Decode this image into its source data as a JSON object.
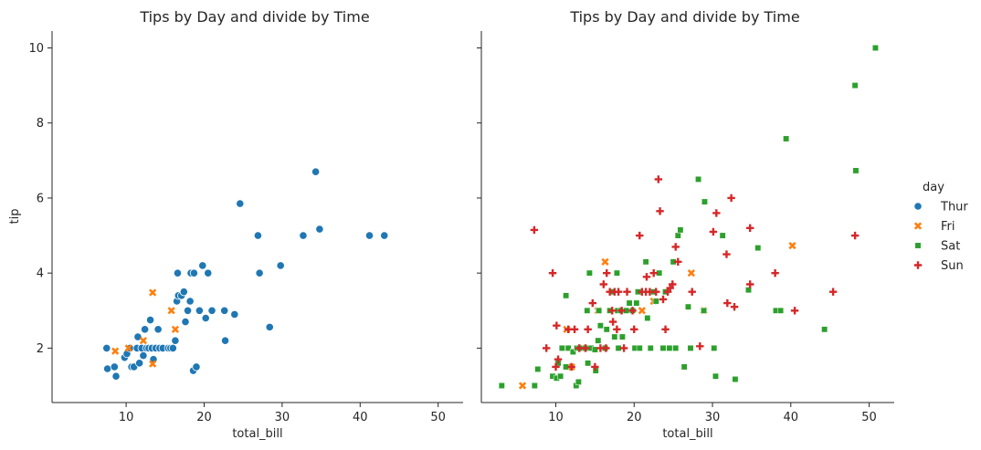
{
  "chart_data": {
    "type": "scatter",
    "xlim": [
      0.5,
      53.2
    ],
    "ylim": [
      0.55,
      10.45
    ],
    "xticks": [
      10,
      20,
      30,
      40,
      50
    ],
    "yticks": [
      2,
      4,
      6,
      8,
      10
    ],
    "grid": false,
    "legend": {
      "title": "day",
      "placement": "right-outside"
    },
    "panels": [
      {
        "title": "Tips by Day and divide by Time",
        "xlabel": "total_bill",
        "ylabel": "tip"
      },
      {
        "title": "Tips by Day and divide by Time",
        "xlabel": "total_bill",
        "ylabel": ""
      }
    ],
    "series": [
      {
        "name": "Thur",
        "marker": "circle",
        "color": "#1f77b4",
        "panel": 0,
        "points": [
          [
            7.5,
            2.0
          ],
          [
            7.6,
            1.45
          ],
          [
            8.5,
            1.5
          ],
          [
            8.7,
            1.25
          ],
          [
            9.8,
            1.75
          ],
          [
            10.1,
            1.85
          ],
          [
            10.5,
            2.0
          ],
          [
            10.7,
            1.5
          ],
          [
            11.0,
            1.5
          ],
          [
            11.4,
            2.0
          ],
          [
            11.5,
            2.3
          ],
          [
            11.7,
            1.6
          ],
          [
            12.0,
            2.0
          ],
          [
            12.2,
            1.8
          ],
          [
            12.4,
            2.5
          ],
          [
            12.6,
            2.0
          ],
          [
            12.9,
            2.0
          ],
          [
            13.1,
            2.75
          ],
          [
            13.3,
            2.0
          ],
          [
            13.5,
            1.7
          ],
          [
            13.8,
            2.0
          ],
          [
            14.1,
            2.5
          ],
          [
            14.3,
            2.0
          ],
          [
            14.7,
            2.0
          ],
          [
            15.4,
            2.0
          ],
          [
            15.7,
            2.0
          ],
          [
            16.0,
            2.0
          ],
          [
            16.3,
            2.2
          ],
          [
            16.5,
            3.25
          ],
          [
            16.6,
            4.0
          ],
          [
            16.7,
            3.4
          ],
          [
            17.1,
            3.4
          ],
          [
            17.4,
            3.5
          ],
          [
            17.6,
            2.7
          ],
          [
            17.9,
            3.0
          ],
          [
            18.2,
            3.25
          ],
          [
            18.3,
            4.0
          ],
          [
            18.6,
            1.4
          ],
          [
            18.7,
            4.0
          ],
          [
            19.0,
            1.5
          ],
          [
            19.4,
            3.0
          ],
          [
            19.8,
            4.2
          ],
          [
            20.2,
            2.8
          ],
          [
            20.5,
            4.0
          ],
          [
            21.0,
            3.0
          ],
          [
            22.6,
            3.0
          ],
          [
            22.7,
            2.2
          ],
          [
            23.9,
            2.9
          ],
          [
            24.6,
            5.85
          ],
          [
            26.9,
            5.0
          ],
          [
            27.1,
            4.0
          ],
          [
            28.4,
            2.56
          ],
          [
            29.8,
            4.2
          ],
          [
            32.7,
            5.0
          ],
          [
            34.3,
            6.7
          ],
          [
            34.8,
            5.17
          ],
          [
            41.2,
            5.0
          ],
          [
            43.1,
            5.0
          ]
        ]
      },
      {
        "name": "Fri",
        "marker": "x",
        "color": "#ff7f0e",
        "panel": 0,
        "points": [
          [
            8.6,
            1.92
          ],
          [
            10.3,
            2.0
          ],
          [
            12.2,
            2.2
          ],
          [
            13.4,
            3.48
          ],
          [
            13.4,
            1.58
          ],
          [
            15.8,
            3.0
          ],
          [
            16.3,
            2.5
          ]
        ]
      },
      {
        "name": "Fri",
        "marker": "x",
        "color": "#ff7f0e",
        "panel": 1,
        "points": [
          [
            5.75,
            1.0
          ],
          [
            11.4,
            2.5
          ],
          [
            12.0,
            1.5
          ],
          [
            13.4,
            2.0
          ],
          [
            15.4,
            3.0
          ],
          [
            16.3,
            4.3
          ],
          [
            21.0,
            3.0
          ],
          [
            22.5,
            3.25
          ],
          [
            27.3,
            4.0
          ],
          [
            28.9,
            3.0
          ],
          [
            40.2,
            4.73
          ]
        ]
      },
      {
        "name": "Sat",
        "marker": "square",
        "color": "#2ca02c",
        "panel": 1,
        "points": [
          [
            3.1,
            1.0
          ],
          [
            7.3,
            1.0
          ],
          [
            7.7,
            1.44
          ],
          [
            9.6,
            1.25
          ],
          [
            10.1,
            1.2
          ],
          [
            10.3,
            1.6
          ],
          [
            10.6,
            1.25
          ],
          [
            10.8,
            2.0
          ],
          [
            11.3,
            1.5
          ],
          [
            11.3,
            3.4
          ],
          [
            11.6,
            2.0
          ],
          [
            12.2,
            1.9
          ],
          [
            12.6,
            1.0
          ],
          [
            12.7,
            2.0
          ],
          [
            12.9,
            1.1
          ],
          [
            13.0,
            2.0
          ],
          [
            13.4,
            2.0
          ],
          [
            13.8,
            2.0
          ],
          [
            14.0,
            3.0
          ],
          [
            14.1,
            1.6
          ],
          [
            14.3,
            4.0
          ],
          [
            14.5,
            2.0
          ],
          [
            15.0,
            1.96
          ],
          [
            15.1,
            1.4
          ],
          [
            15.4,
            2.2
          ],
          [
            15.5,
            3.0
          ],
          [
            15.7,
            2.6
          ],
          [
            16.3,
            2.0
          ],
          [
            16.5,
            2.5
          ],
          [
            16.9,
            3.0
          ],
          [
            17.3,
            3.5
          ],
          [
            17.5,
            2.3
          ],
          [
            17.8,
            4.0
          ],
          [
            17.9,
            3.0
          ],
          [
            18.0,
            2.0
          ],
          [
            18.3,
            3.0
          ],
          [
            18.5,
            2.3
          ],
          [
            19.0,
            3.0
          ],
          [
            19.4,
            3.2
          ],
          [
            19.8,
            3.0
          ],
          [
            20.1,
            2.0
          ],
          [
            20.3,
            3.2
          ],
          [
            20.5,
            3.5
          ],
          [
            20.7,
            2.0
          ],
          [
            21.5,
            4.3
          ],
          [
            21.7,
            2.8
          ],
          [
            22.1,
            2.0
          ],
          [
            22.5,
            3.5
          ],
          [
            22.8,
            3.25
          ],
          [
            23.2,
            4.0
          ],
          [
            23.7,
            2.0
          ],
          [
            24.0,
            3.5
          ],
          [
            24.5,
            2.0
          ],
          [
            25.0,
            4.3
          ],
          [
            25.3,
            2.0
          ],
          [
            25.6,
            5.0
          ],
          [
            25.9,
            5.15
          ],
          [
            26.4,
            1.5
          ],
          [
            26.9,
            3.1
          ],
          [
            27.2,
            2.0
          ],
          [
            28.2,
            6.5
          ],
          [
            28.9,
            3.0
          ],
          [
            29.0,
            5.9
          ],
          [
            30.2,
            2.0
          ],
          [
            30.4,
            1.25
          ],
          [
            31.3,
            5.0
          ],
          [
            32.9,
            1.17
          ],
          [
            34.6,
            3.55
          ],
          [
            35.8,
            4.67
          ],
          [
            38.1,
            3.0
          ],
          [
            38.7,
            3.0
          ],
          [
            39.4,
            7.58
          ],
          [
            44.3,
            2.5
          ],
          [
            48.2,
            9.0
          ],
          [
            48.3,
            6.73
          ],
          [
            50.8,
            10.0
          ]
        ]
      },
      {
        "name": "Sun",
        "marker": "plus",
        "color": "#d62728",
        "panel": 1,
        "points": [
          [
            7.25,
            5.15
          ],
          [
            8.8,
            2.0
          ],
          [
            9.6,
            4.0
          ],
          [
            10.0,
            1.5
          ],
          [
            10.1,
            2.6
          ],
          [
            10.3,
            1.7
          ],
          [
            11.6,
            2.5
          ],
          [
            12.0,
            1.5
          ],
          [
            12.4,
            2.5
          ],
          [
            13.0,
            2.0
          ],
          [
            13.8,
            2.0
          ],
          [
            14.1,
            2.5
          ],
          [
            14.7,
            3.2
          ],
          [
            15.0,
            1.5
          ],
          [
            15.7,
            2.0
          ],
          [
            16.1,
            3.7
          ],
          [
            16.4,
            2.0
          ],
          [
            16.5,
            4.0
          ],
          [
            16.9,
            3.5
          ],
          [
            17.2,
            3.0
          ],
          [
            17.3,
            2.7
          ],
          [
            17.5,
            3.5
          ],
          [
            17.8,
            2.5
          ],
          [
            18.0,
            3.5
          ],
          [
            18.4,
            3.0
          ],
          [
            18.7,
            2.0
          ],
          [
            19.1,
            3.5
          ],
          [
            19.8,
            3.0
          ],
          [
            20.0,
            2.5
          ],
          [
            20.7,
            5.0
          ],
          [
            21.0,
            3.5
          ],
          [
            21.5,
            3.5
          ],
          [
            21.6,
            3.9
          ],
          [
            22.0,
            3.5
          ],
          [
            22.5,
            4.0
          ],
          [
            22.8,
            3.5
          ],
          [
            23.1,
            6.5
          ],
          [
            23.3,
            5.65
          ],
          [
            23.7,
            3.3
          ],
          [
            24.0,
            2.5
          ],
          [
            24.3,
            3.5
          ],
          [
            24.6,
            3.6
          ],
          [
            24.9,
            3.7
          ],
          [
            25.3,
            4.7
          ],
          [
            25.6,
            4.3
          ],
          [
            27.4,
            3.5
          ],
          [
            28.4,
            2.05
          ],
          [
            30.1,
            5.1
          ],
          [
            30.5,
            5.6
          ],
          [
            31.8,
            4.5
          ],
          [
            31.9,
            3.2
          ],
          [
            32.4,
            6.0
          ],
          [
            32.8,
            3.1
          ],
          [
            34.8,
            5.2
          ],
          [
            34.8,
            3.7
          ],
          [
            38.0,
            4.0
          ],
          [
            40.5,
            3.0
          ],
          [
            45.4,
            3.5
          ],
          [
            48.2,
            5.0
          ]
        ]
      }
    ]
  }
}
